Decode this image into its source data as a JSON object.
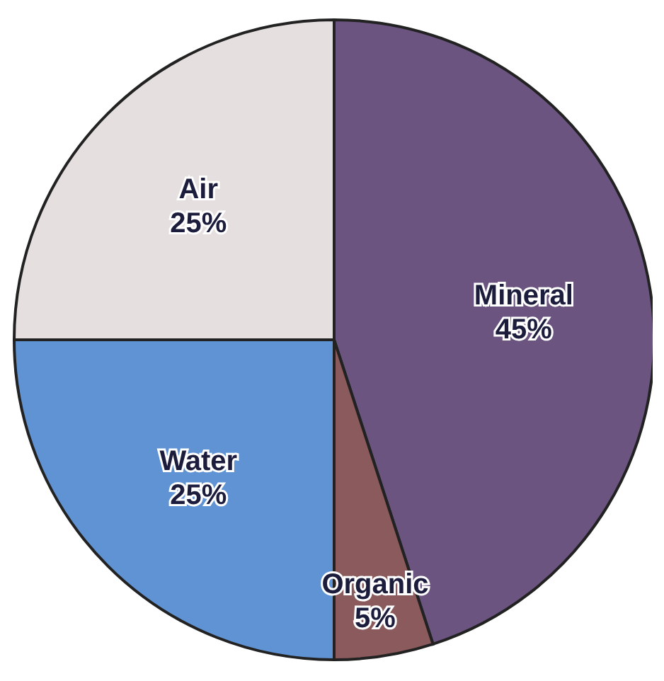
{
  "chart_data": {
    "type": "pie",
    "categories": [
      "Mineral",
      "Organic",
      "Water",
      "Air"
    ],
    "values": [
      45,
      5,
      25,
      25
    ],
    "value_labels": [
      "45%",
      "5%",
      "25%",
      "25%"
    ],
    "colors": [
      "#6b5580",
      "#8a5a5c",
      "#5f93d4",
      "#e6dfe0"
    ]
  }
}
